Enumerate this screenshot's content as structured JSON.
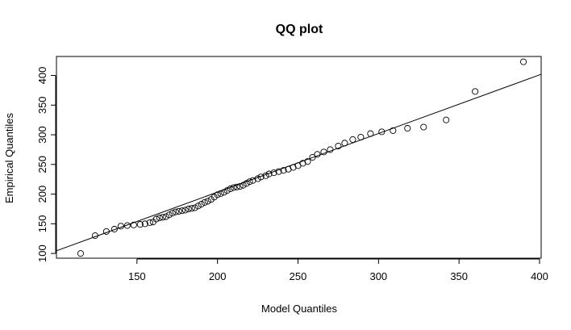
{
  "chart_data": {
    "type": "scatter",
    "title": "QQ plot",
    "xlabel": "Model Quantiles",
    "ylabel": "Empirical Quantiles",
    "xlim": [
      100,
      401
    ],
    "ylim": [
      92,
      432
    ],
    "xticks": [
      150,
      200,
      250,
      300,
      350,
      400
    ],
    "yticks": [
      100,
      150,
      200,
      250,
      300,
      350,
      400
    ],
    "reference_line": {
      "x": [
        100,
        401
      ],
      "y": [
        104.5,
        402
      ]
    },
    "points": [
      [
        115,
        100
      ],
      [
        124,
        130
      ],
      [
        131,
        137
      ],
      [
        136,
        141
      ],
      [
        140,
        146
      ],
      [
        144,
        147
      ],
      [
        148,
        148
      ],
      [
        152,
        149
      ],
      [
        155,
        150
      ],
      [
        158,
        152
      ],
      [
        160,
        153
      ],
      [
        162,
        158
      ],
      [
        164,
        160
      ],
      [
        166,
        161
      ],
      [
        168,
        162
      ],
      [
        170,
        165
      ],
      [
        172,
        168
      ],
      [
        174,
        170
      ],
      [
        176,
        171
      ],
      [
        178,
        172
      ],
      [
        180,
        173
      ],
      [
        182,
        175
      ],
      [
        184,
        176
      ],
      [
        186,
        177
      ],
      [
        188,
        180
      ],
      [
        190,
        183
      ],
      [
        192,
        186
      ],
      [
        194,
        188
      ],
      [
        196,
        191
      ],
      [
        198,
        195
      ],
      [
        200,
        199
      ],
      [
        202,
        201
      ],
      [
        204,
        203
      ],
      [
        206,
        206
      ],
      [
        208,
        209
      ],
      [
        210,
        211
      ],
      [
        212,
        212
      ],
      [
        214,
        213
      ],
      [
        216,
        215
      ],
      [
        218,
        218
      ],
      [
        220,
        221
      ],
      [
        222,
        223
      ],
      [
        225,
        226
      ],
      [
        227,
        229
      ],
      [
        230,
        231
      ],
      [
        232,
        234
      ],
      [
        235,
        236
      ],
      [
        238,
        238
      ],
      [
        241,
        240
      ],
      [
        244,
        242
      ],
      [
        247,
        245
      ],
      [
        250,
        248
      ],
      [
        253,
        252
      ],
      [
        256,
        255
      ],
      [
        259,
        262
      ],
      [
        262,
        267
      ],
      [
        266,
        271
      ],
      [
        270,
        275
      ],
      [
        275,
        281
      ],
      [
        279,
        286
      ],
      [
        284,
        292
      ],
      [
        289,
        296
      ],
      [
        295,
        302
      ],
      [
        302,
        305
      ],
      [
        309,
        307
      ],
      [
        318,
        311
      ],
      [
        328,
        313
      ],
      [
        342,
        325
      ],
      [
        360,
        373
      ],
      [
        390,
        423
      ]
    ]
  }
}
